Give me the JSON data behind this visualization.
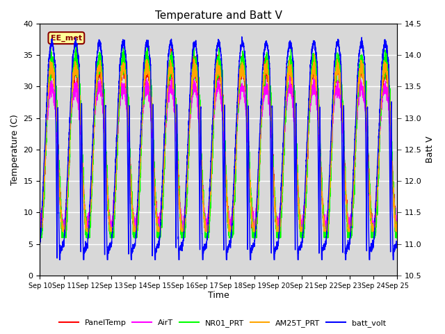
{
  "title": "Temperature and Batt V",
  "xlabel": "Time",
  "ylabel_left": "Temperature (C)",
  "ylabel_right": "Batt V",
  "annotation": "EE_met",
  "n_days": 15,
  "ylim_left": [
    0,
    40
  ],
  "ylim_right": [
    10.5,
    14.5
  ],
  "xtick_labels": [
    "Sep 10",
    "Sep 11",
    "Sep 12",
    "Sep 13",
    "Sep 14",
    "Sep 15",
    "Sep 16",
    "Sep 17",
    "Sep 18",
    "Sep 19",
    "Sep 20",
    "Sep 21",
    "Sep 22",
    "Sep 23",
    "Sep 24",
    "Sep 25"
  ],
  "yticks_left": [
    0,
    5,
    10,
    15,
    20,
    25,
    30,
    35,
    40
  ],
  "yticks_right": [
    10.5,
    11.0,
    11.5,
    12.0,
    12.5,
    13.0,
    13.5,
    14.0,
    14.5
  ],
  "bg_color": "#d8d8d8",
  "fig_color": "#ffffff",
  "grid_color": "#ffffff",
  "colors": {
    "PanelTemp": "#ff0000",
    "AirT": "#ff00ff",
    "NR01_PRT": "#00ff00",
    "AM25T_PRT": "#ffa500",
    "batt_volt": "#0000ff"
  },
  "legend_labels": [
    "PanelTemp",
    "AirT",
    "NR01_PRT",
    "AM25T_PRT",
    "batt_volt"
  ]
}
